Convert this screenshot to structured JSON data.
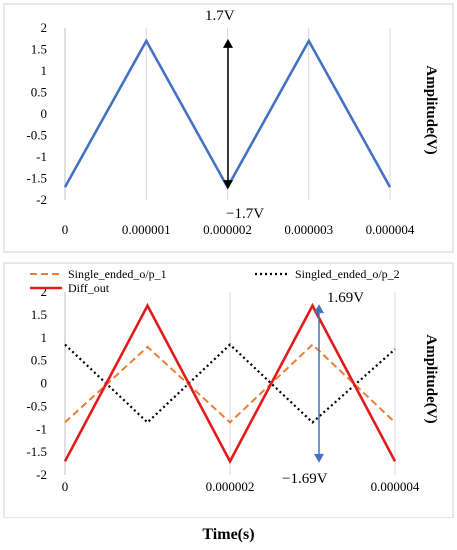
{
  "chart_data": [
    {
      "type": "line",
      "ylabel": "Amplitude(V)",
      "xlabel": "",
      "xlim": [
        0,
        4e-06
      ],
      "ylim": [
        -2,
        2
      ],
      "x_ticks": [
        "0",
        "0.000001",
        "0.000002",
        "0.000003",
        "0.000004"
      ],
      "y_ticks": [
        "2",
        "1.5",
        "1",
        "0.5",
        "0",
        "-0.5",
        "-1",
        "-1.5",
        "-2"
      ],
      "grid": "vertical",
      "series": [
        {
          "color": "#4472C4",
          "style": "solid",
          "x": [
            0,
            1e-06,
            2e-06,
            3e-06,
            4e-06
          ],
          "values": [
            -1.7,
            1.7,
            -1.7,
            1.7,
            -1.7
          ]
        }
      ],
      "annotations": [
        {
          "text": "1.7V",
          "x": 2e-06,
          "y": 1.7
        },
        {
          "text": "−1.7V",
          "x": 2e-06,
          "y": -1.7
        }
      ]
    },
    {
      "type": "line",
      "ylabel": "Amplitude(V)",
      "xlabel": "Time(s)",
      "xlim": [
        0,
        4e-06
      ],
      "ylim": [
        -2,
        2
      ],
      "x_ticks": [
        "0",
        "0.000002",
        "0.000004"
      ],
      "y_ticks": [
        "2",
        "1.5",
        "1",
        "0.5",
        "0",
        "-0.5",
        "-1",
        "-1.5",
        "-2"
      ],
      "grid": "vertical",
      "legend": "top",
      "series": [
        {
          "name": "Single_ended_o/p_1",
          "color": "#ED7D31",
          "style": "dashed",
          "x": [
            0,
            1e-06,
            2e-06,
            3e-06,
            4e-06
          ],
          "values": [
            -0.85,
            0.8,
            -0.85,
            0.85,
            -0.85
          ]
        },
        {
          "name": "Singled_ended_o/p_2",
          "color": "#000000",
          "style": "dotted",
          "x": [
            0,
            1e-06,
            2e-06,
            3e-06,
            4e-06
          ],
          "values": [
            0.85,
            -0.85,
            0.85,
            -0.85,
            0.75
          ]
        },
        {
          "name": "Diff_out",
          "color": "#E31A1C",
          "style": "solid",
          "x": [
            0,
            1e-06,
            2e-06,
            3e-06,
            4e-06
          ],
          "values": [
            -1.7,
            1.7,
            -1.7,
            1.7,
            -1.7
          ]
        }
      ],
      "annotations": [
        {
          "text": "1.69V",
          "x": 3e-06,
          "y": 1.69
        },
        {
          "text": "−1.69V",
          "x": 3e-06,
          "y": -1.69
        }
      ]
    }
  ]
}
